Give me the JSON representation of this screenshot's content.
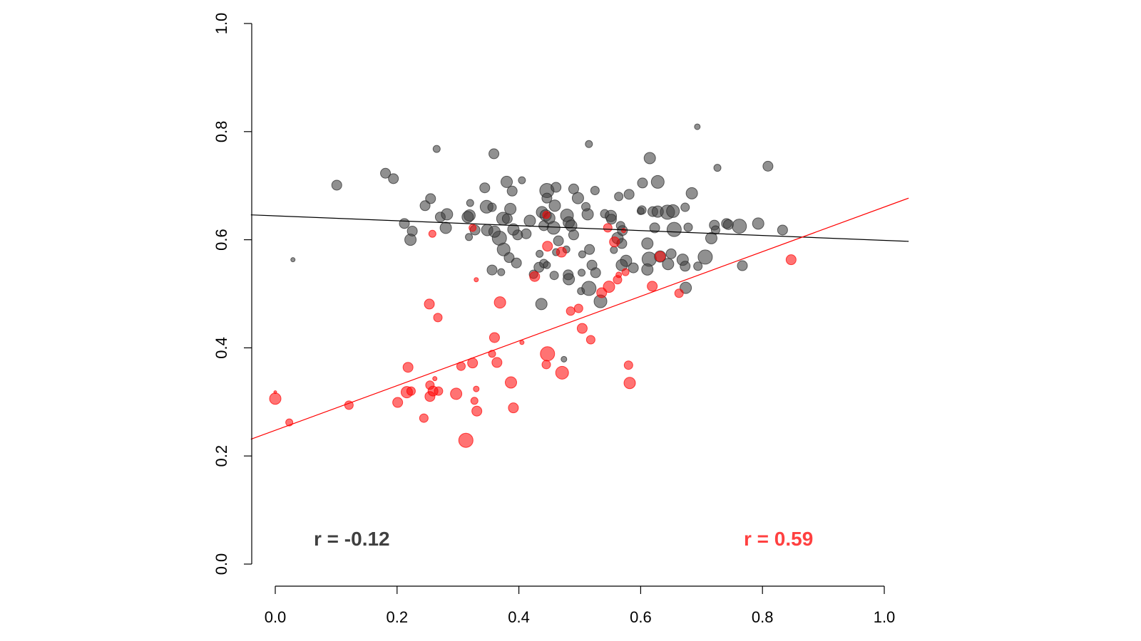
{
  "chart_data": {
    "type": "scatter",
    "title": "",
    "xlabel": "",
    "ylabel": "",
    "xlim": [
      -0.04,
      1.04
    ],
    "ylim": [
      -0.04,
      1.04
    ],
    "grid": false,
    "x_ticks": [
      "0.0",
      "0.2",
      "0.4",
      "0.6",
      "0.8",
      "1.0"
    ],
    "y_ticks": [
      "0.0",
      "0.2",
      "0.4",
      "0.6",
      "0.8",
      "1.0"
    ],
    "colors": {
      "black_series": "#404040",
      "red_series": "#ff0000",
      "black_label": "#404040",
      "red_label": "#ff4040"
    },
    "annotations": [
      {
        "text": "r = -0.12",
        "series": "black"
      },
      {
        "text": "r = 0.59",
        "series": "red"
      }
    ],
    "series": [
      {
        "key": "black",
        "color": "#404040",
        "fit_line": {
          "x": [
            -0.04,
            1.04
          ],
          "y": [
            0.646,
            0.597
          ]
        },
        "points": [
          [
            0.029,
            0.563,
            3
          ],
          [
            0.101,
            0.701,
            7
          ],
          [
            0.181,
            0.723,
            7
          ],
          [
            0.194,
            0.713,
            7
          ],
          [
            0.265,
            0.768,
            5
          ],
          [
            0.359,
            0.759,
            7
          ],
          [
            0.515,
            0.777,
            5
          ],
          [
            0.693,
            0.809,
            4
          ],
          [
            0.726,
            0.733,
            5
          ],
          [
            0.809,
            0.736,
            7
          ],
          [
            0.615,
            0.751,
            8
          ],
          [
            0.628,
            0.707,
            9
          ],
          [
            0.603,
            0.705,
            7
          ],
          [
            0.684,
            0.686,
            8
          ],
          [
            0.405,
            0.71,
            5
          ],
          [
            0.38,
            0.707,
            8
          ],
          [
            0.389,
            0.69,
            7
          ],
          [
            0.344,
            0.696,
            7
          ],
          [
            0.446,
            0.691,
            10
          ],
          [
            0.461,
            0.697,
            7
          ],
          [
            0.49,
            0.694,
            7
          ],
          [
            0.497,
            0.677,
            8
          ],
          [
            0.525,
            0.691,
            6
          ],
          [
            0.581,
            0.684,
            7
          ],
          [
            0.564,
            0.68,
            6
          ],
          [
            0.255,
            0.676,
            7
          ],
          [
            0.246,
            0.663,
            7
          ],
          [
            0.212,
            0.63,
            7
          ],
          [
            0.225,
            0.616,
            7
          ],
          [
            0.222,
            0.6,
            8
          ],
          [
            0.271,
            0.642,
            7
          ],
          [
            0.282,
            0.647,
            8
          ],
          [
            0.28,
            0.622,
            8
          ],
          [
            0.319,
            0.645,
            8
          ],
          [
            0.32,
            0.668,
            5
          ],
          [
            0.316,
            0.642,
            8
          ],
          [
            0.347,
            0.661,
            9
          ],
          [
            0.356,
            0.66,
            6
          ],
          [
            0.368,
            0.603,
            10
          ],
          [
            0.374,
            0.639,
            9
          ],
          [
            0.386,
            0.657,
            8
          ],
          [
            0.381,
            0.639,
            7
          ],
          [
            0.318,
            0.605,
            5
          ],
          [
            0.328,
            0.618,
            7
          ],
          [
            0.348,
            0.618,
            8
          ],
          [
            0.36,
            0.615,
            8
          ],
          [
            0.356,
            0.544,
            7
          ],
          [
            0.371,
            0.54,
            5
          ],
          [
            0.375,
            0.582,
            9
          ],
          [
            0.384,
            0.567,
            7
          ],
          [
            0.396,
            0.557,
            7
          ],
          [
            0.398,
            0.609,
            7
          ],
          [
            0.391,
            0.619,
            8
          ],
          [
            0.412,
            0.611,
            7
          ],
          [
            0.418,
            0.635,
            8
          ],
          [
            0.433,
            0.549,
            7
          ],
          [
            0.434,
            0.574,
            5
          ],
          [
            0.438,
            0.651,
            8
          ],
          [
            0.441,
            0.626,
            7
          ],
          [
            0.444,
            0.645,
            8
          ],
          [
            0.446,
            0.677,
            7
          ],
          [
            0.45,
            0.64,
            8
          ],
          [
            0.457,
            0.622,
            9
          ],
          [
            0.459,
            0.663,
            8
          ],
          [
            0.461,
            0.577,
            5
          ],
          [
            0.465,
            0.598,
            7
          ],
          [
            0.441,
            0.556,
            6
          ],
          [
            0.446,
            0.553,
            5
          ],
          [
            0.437,
            0.481,
            8
          ],
          [
            0.458,
            0.534,
            6
          ],
          [
            0.479,
            0.645,
            9
          ],
          [
            0.482,
            0.632,
            8
          ],
          [
            0.486,
            0.626,
            8
          ],
          [
            0.49,
            0.609,
            7
          ],
          [
            0.481,
            0.535,
            7
          ],
          [
            0.482,
            0.527,
            8
          ],
          [
            0.478,
            0.582,
            5
          ],
          [
            0.502,
            0.505,
            5
          ],
          [
            0.503,
            0.539,
            5
          ],
          [
            0.504,
            0.573,
            5
          ],
          [
            0.515,
            0.51,
            10
          ],
          [
            0.516,
            0.582,
            7
          ],
          [
            0.52,
            0.553,
            7
          ],
          [
            0.526,
            0.539,
            7
          ],
          [
            0.513,
            0.647,
            8
          ],
          [
            0.51,
            0.661,
            6
          ],
          [
            0.541,
            0.648,
            6
          ],
          [
            0.551,
            0.644,
            8
          ],
          [
            0.556,
            0.581,
            5
          ],
          [
            0.552,
            0.638,
            7
          ],
          [
            0.562,
            0.603,
            8
          ],
          [
            0.569,
            0.593,
            7
          ],
          [
            0.576,
            0.561,
            8
          ],
          [
            0.569,
            0.553,
            8
          ],
          [
            0.534,
            0.486,
            9
          ],
          [
            0.567,
            0.626,
            6
          ],
          [
            0.57,
            0.617,
            7
          ],
          [
            0.588,
            0.548,
            7
          ],
          [
            0.6,
            0.653,
            5
          ],
          [
            0.602,
            0.655,
            6
          ],
          [
            0.611,
            0.593,
            8
          ],
          [
            0.614,
            0.564,
            10
          ],
          [
            0.611,
            0.545,
            8
          ],
          [
            0.62,
            0.652,
            7
          ],
          [
            0.628,
            0.652,
            8
          ],
          [
            0.623,
            0.622,
            7
          ],
          [
            0.644,
            0.651,
            10
          ],
          [
            0.653,
            0.653,
            9
          ],
          [
            0.655,
            0.619,
            10
          ],
          [
            0.673,
            0.66,
            6
          ],
          [
            0.678,
            0.623,
            6
          ],
          [
            0.632,
            0.569,
            8
          ],
          [
            0.65,
            0.574,
            7
          ],
          [
            0.645,
            0.555,
            8
          ],
          [
            0.669,
            0.563,
            8
          ],
          [
            0.673,
            0.551,
            7
          ],
          [
            0.674,
            0.511,
            8
          ],
          [
            0.706,
            0.568,
            10
          ],
          [
            0.694,
            0.551,
            6
          ],
          [
            0.716,
            0.603,
            8
          ],
          [
            0.721,
            0.627,
            7
          ],
          [
            0.723,
            0.618,
            6
          ],
          [
            0.741,
            0.63,
            7
          ],
          [
            0.744,
            0.628,
            7
          ],
          [
            0.762,
            0.625,
            10
          ],
          [
            0.767,
            0.552,
            7
          ],
          [
            0.793,
            0.63,
            8
          ],
          [
            0.833,
            0.618,
            7
          ],
          [
            0.474,
            0.379,
            4
          ],
          [
            0.424,
            0.536,
            6
          ]
        ]
      },
      {
        "key": "red",
        "color": "#ff0000",
        "fit_line": {
          "x": [
            -0.04,
            1.04
          ],
          "y": [
            0.231,
            0.677
          ]
        },
        "points": [
          [
            0.0,
            0.306,
            8
          ],
          [
            0.0,
            0.318,
            2
          ],
          [
            0.023,
            0.262,
            5
          ],
          [
            0.121,
            0.294,
            6
          ],
          [
            0.201,
            0.299,
            7
          ],
          [
            0.216,
            0.318,
            8
          ],
          [
            0.223,
            0.32,
            6
          ],
          [
            0.218,
            0.364,
            7
          ],
          [
            0.254,
            0.331,
            6
          ],
          [
            0.254,
            0.31,
            7
          ],
          [
            0.259,
            0.32,
            7
          ],
          [
            0.262,
            0.343,
            3
          ],
          [
            0.268,
            0.32,
            6
          ],
          [
            0.244,
            0.27,
            6
          ],
          [
            0.253,
            0.481,
            7
          ],
          [
            0.267,
            0.456,
            6
          ],
          [
            0.258,
            0.611,
            5
          ],
          [
            0.297,
            0.315,
            8
          ],
          [
            0.305,
            0.366,
            6
          ],
          [
            0.324,
            0.372,
            7
          ],
          [
            0.327,
            0.302,
            5
          ],
          [
            0.33,
            0.324,
            4
          ],
          [
            0.331,
            0.283,
            7
          ],
          [
            0.313,
            0.229,
            10
          ],
          [
            0.33,
            0.526,
            3
          ],
          [
            0.324,
            0.622,
            5
          ],
          [
            0.356,
            0.389,
            5
          ],
          [
            0.36,
            0.419,
            7
          ],
          [
            0.364,
            0.373,
            7
          ],
          [
            0.369,
            0.484,
            8
          ],
          [
            0.387,
            0.336,
            8
          ],
          [
            0.391,
            0.289,
            7
          ],
          [
            0.405,
            0.41,
            3
          ],
          [
            0.426,
            0.532,
            7
          ],
          [
            0.445,
            0.369,
            6
          ],
          [
            0.447,
            0.389,
            10
          ],
          [
            0.447,
            0.588,
            7
          ],
          [
            0.445,
            0.646,
            5
          ],
          [
            0.471,
            0.354,
            9
          ],
          [
            0.47,
            0.577,
            7
          ],
          [
            0.485,
            0.468,
            6
          ],
          [
            0.498,
            0.473,
            6
          ],
          [
            0.504,
            0.436,
            7
          ],
          [
            0.518,
            0.415,
            6
          ],
          [
            0.536,
            0.502,
            7
          ],
          [
            0.548,
            0.513,
            8
          ],
          [
            0.546,
            0.622,
            6
          ],
          [
            0.557,
            0.596,
            7
          ],
          [
            0.562,
            0.526,
            6
          ],
          [
            0.564,
            0.535,
            4
          ],
          [
            0.575,
            0.54,
            5
          ],
          [
            0.572,
            0.617,
            3
          ],
          [
            0.58,
            0.368,
            6
          ],
          [
            0.582,
            0.335,
            8
          ],
          [
            0.619,
            0.514,
            7
          ],
          [
            0.632,
            0.569,
            7
          ],
          [
            0.663,
            0.501,
            6
          ],
          [
            0.847,
            0.563,
            7
          ]
        ]
      }
    ]
  }
}
